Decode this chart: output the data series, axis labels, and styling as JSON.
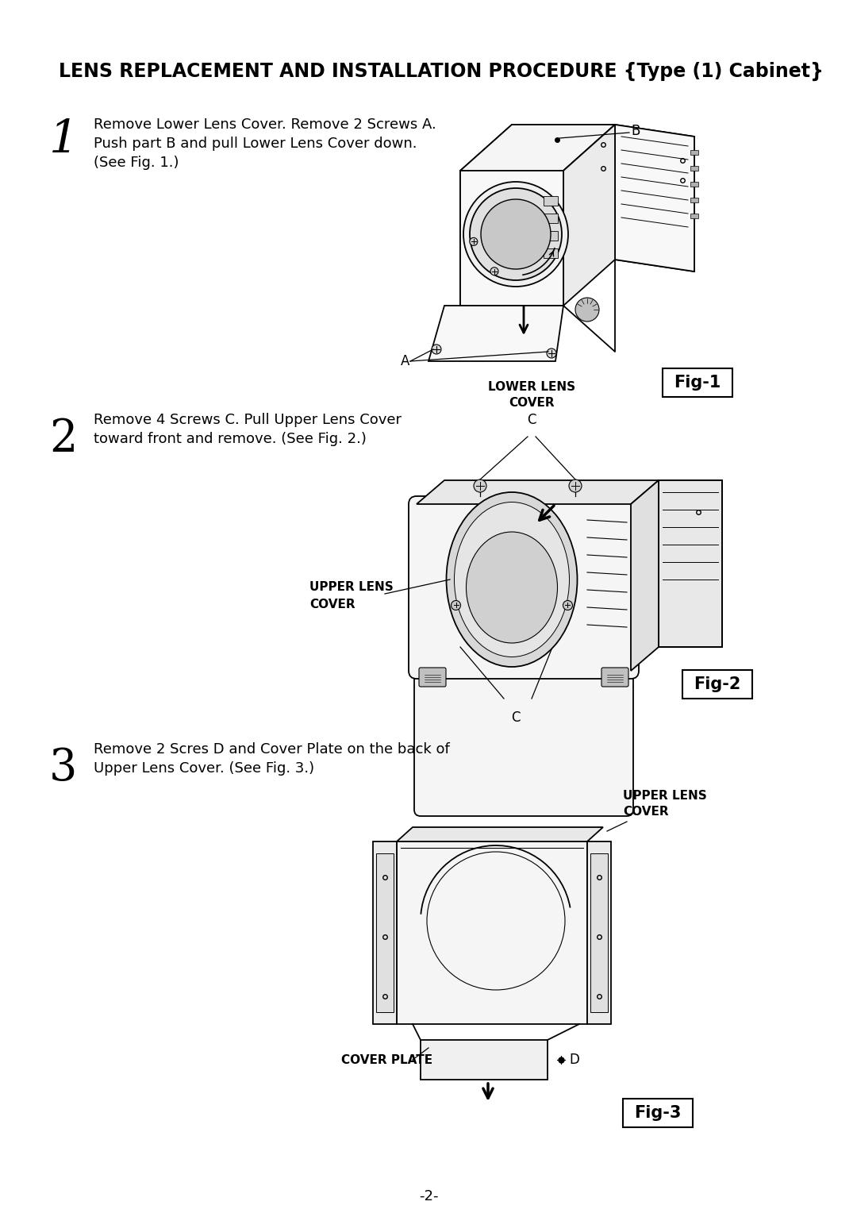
{
  "title": "LENS REPLACEMENT AND INSTALLATION PROCEDURE {Type (1) Cabinet}",
  "bg_color": "#ffffff",
  "text_color": "#000000",
  "page_number": "-2-",
  "step1_number": "1",
  "step1_text_line1": "Remove Lower Lens Cover. Remove 2 Screws A.",
  "step1_text_line2": "Push part B and pull Lower Lens Cover down.",
  "step1_text_line3": "(See Fig. 1.)",
  "step2_number": "2",
  "step2_text_line1": "Remove 4 Screws C. Pull Upper Lens Cover",
  "step2_text_line2": "toward front and remove. (See Fig. 2.)",
  "step3_number": "3",
  "step3_text_line1": "Remove 2 Scres D and Cover Plate on the back of",
  "step3_text_line2": "Upper Lens Cover. (See Fig. 3.)",
  "fig1_label": "Fig-1",
  "fig2_label": "Fig-2",
  "fig3_label": "Fig-3",
  "lower_lens": "LOWER LENS",
  "cover_text": "COVER",
  "label_A": "A",
  "label_B": "B",
  "upper_lens": "UPPER LENS",
  "label_C": "C",
  "upper_lens3": "UPPER LENS",
  "cover_text3": "COVER",
  "cover_plate": "COVER PLATE",
  "label_D": "D"
}
